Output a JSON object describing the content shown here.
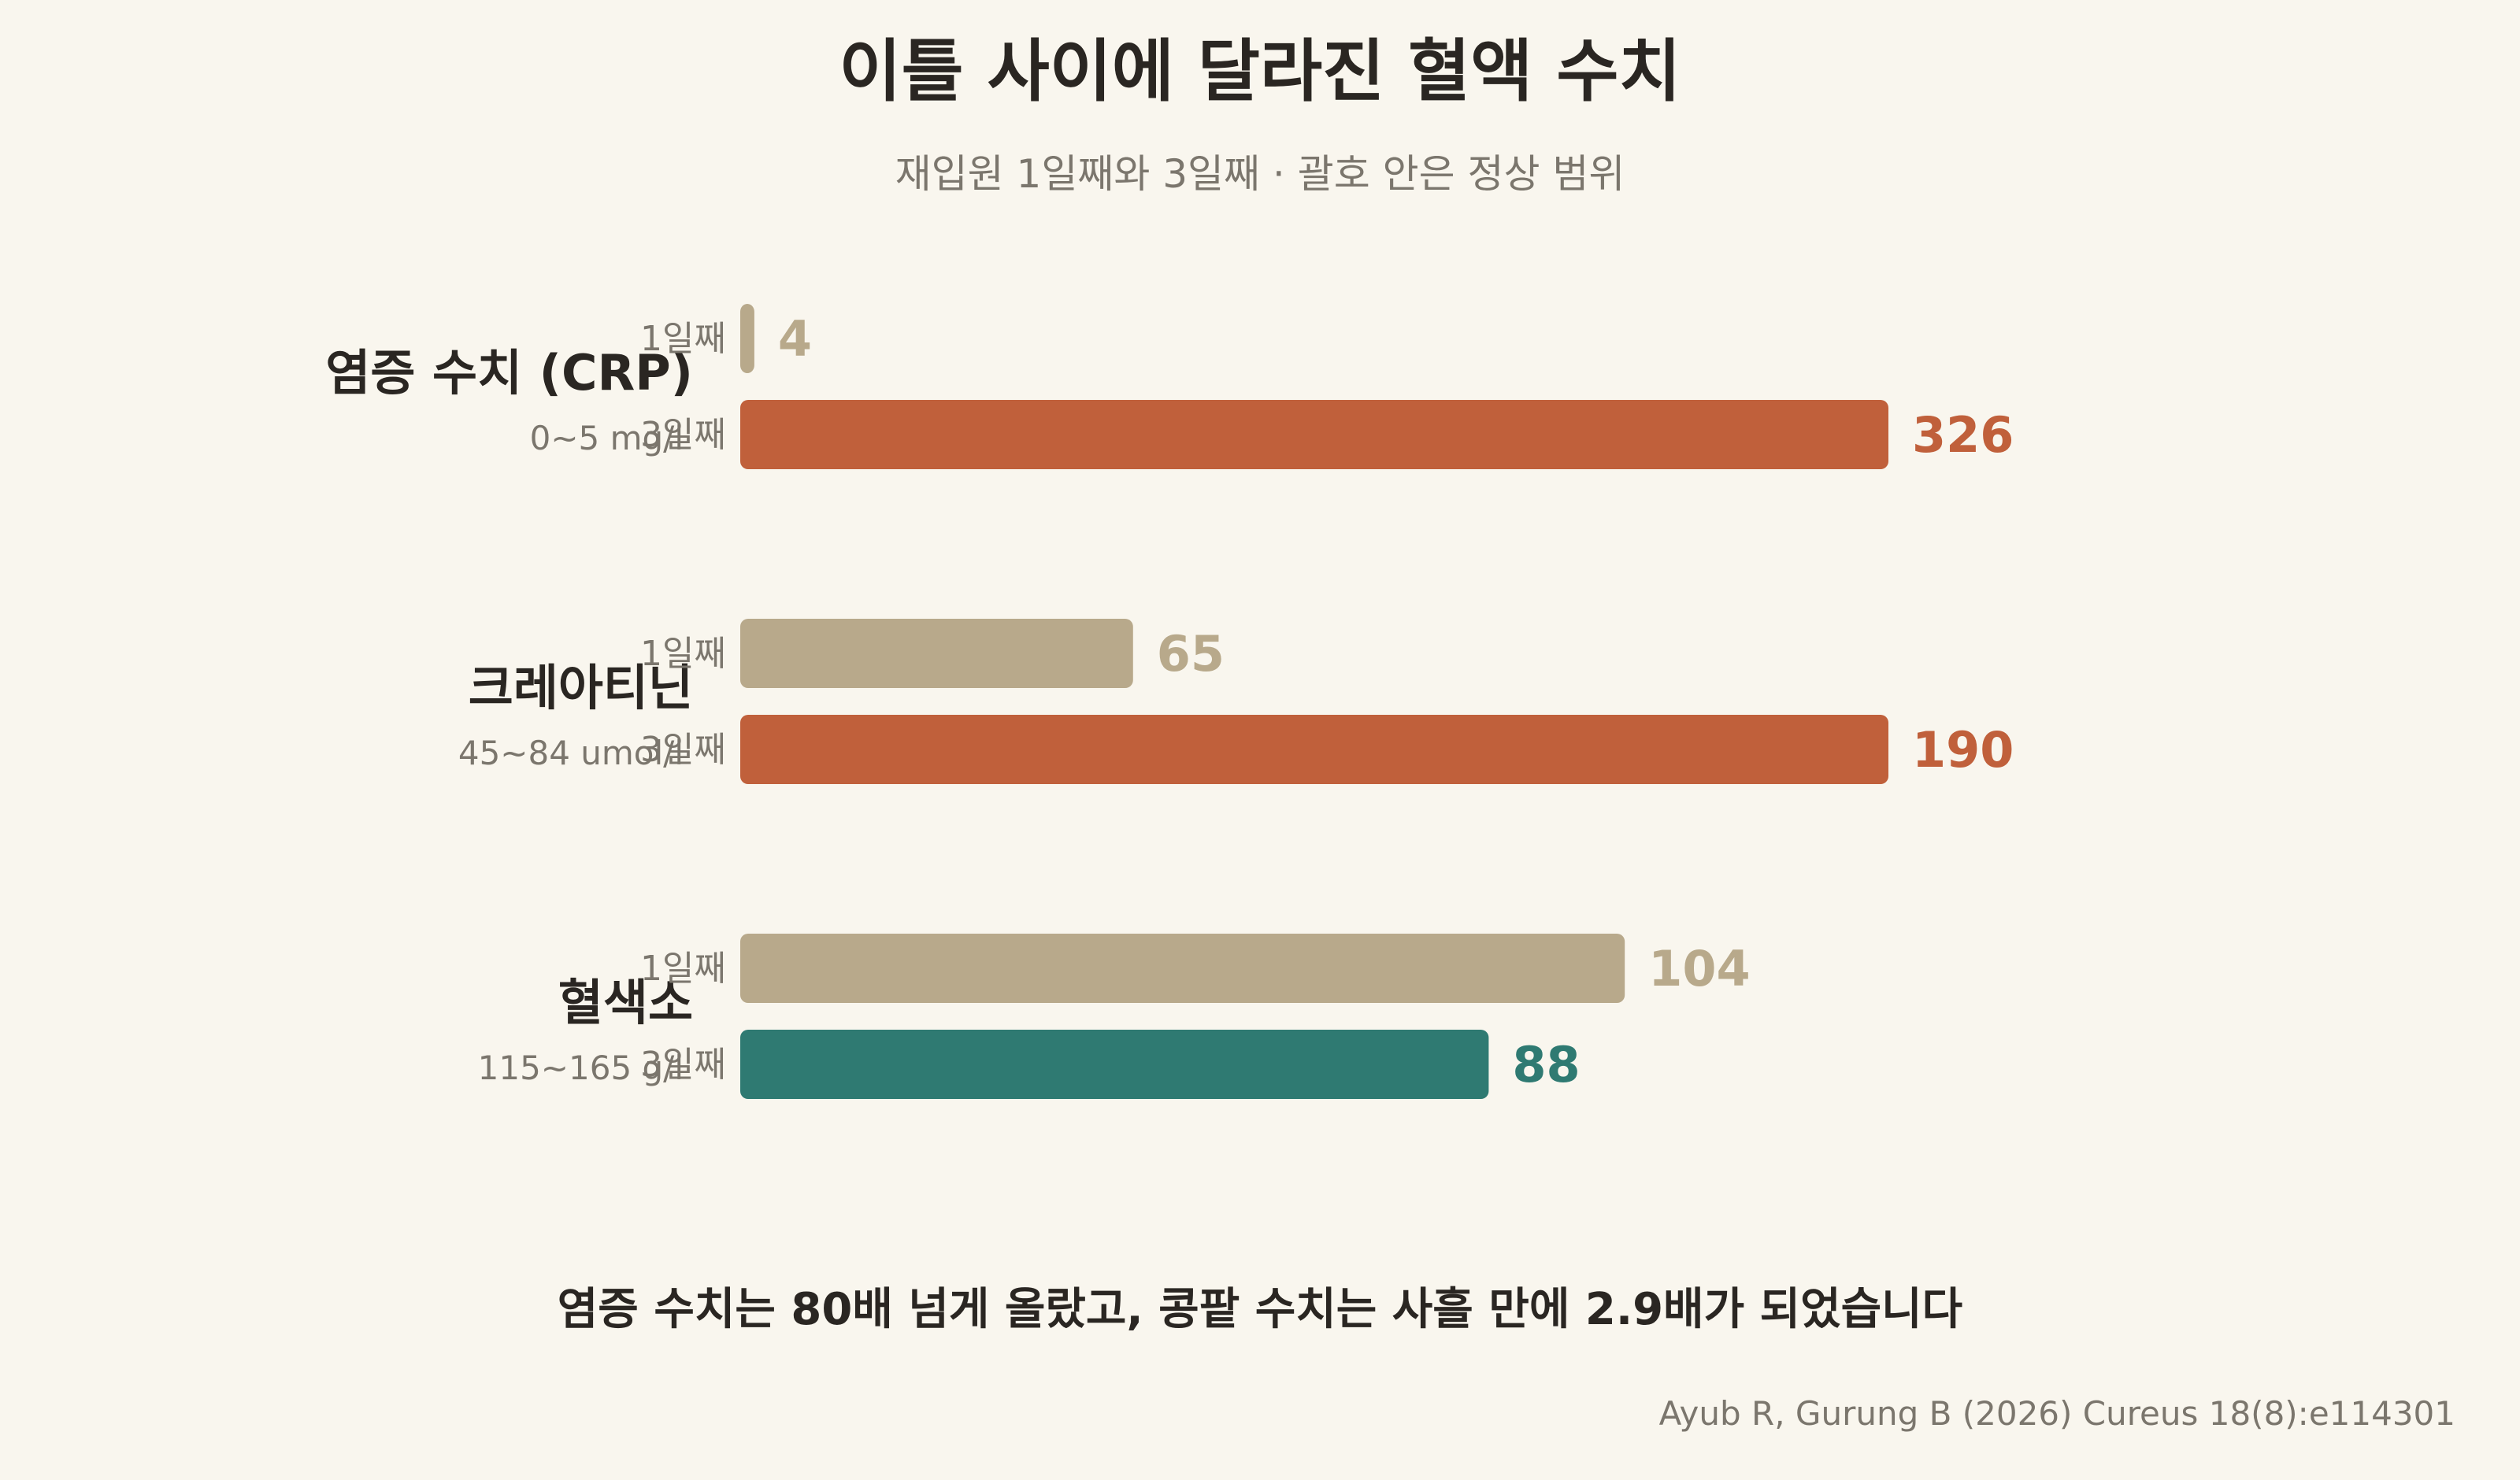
{
  "colors": {
    "background": "#f9f6ee",
    "day1": "#b8a98b",
    "increase": "#c0603b",
    "decrease": "#2f7a72",
    "text_dark": "#2a2622",
    "text_muted": "#7b766d"
  },
  "chart_data": {
    "type": "bar",
    "orientation": "horizontal",
    "title": "이틀 사이에 달라진 혈액 수치",
    "subtitle": "재입원 1일째와 3일째 · 괄호 안은 정상 범위",
    "footnote": "염증 수치는 80배 넘게 올랐고, 콩팥 수치는 사흘 만에 2.9배가 되었습니다",
    "source": "Ayub R, Gurung B (2026) Cureus 18(8):e114301",
    "groups": [
      {
        "label": "염증 수치 (CRP)",
        "range": "0~5 mg/l",
        "max": 326,
        "bars": [
          {
            "label": "1일째",
            "value": 4,
            "status": "day1"
          },
          {
            "label": "3일째",
            "value": 326,
            "status": "increase"
          }
        ]
      },
      {
        "label": "크레아티닌",
        "range": "45~84 umol/l",
        "max": 190,
        "bars": [
          {
            "label": "1일째",
            "value": 65,
            "status": "day1"
          },
          {
            "label": "3일째",
            "value": 190,
            "status": "increase"
          }
        ]
      },
      {
        "label": "혈색소",
        "range": "115~165 g/l",
        "max": 135,
        "bars": [
          {
            "label": "1일째",
            "value": 104,
            "status": "day1"
          },
          {
            "label": "3일째",
            "value": 88,
            "status": "decrease"
          }
        ]
      }
    ]
  }
}
